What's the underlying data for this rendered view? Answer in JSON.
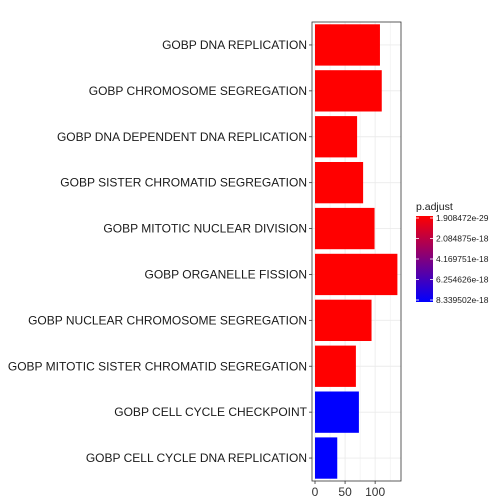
{
  "chart_data": {
    "type": "bar",
    "orientation": "horizontal",
    "categories": [
      "GOBP DNA REPLICATION",
      "GOBP CHROMOSOME SEGREGATION",
      "GOBP DNA DEPENDENT DNA REPLICATION",
      "GOBP SISTER CHROMATID SEGREGATION",
      "GOBP MITOTIC NUCLEAR DIVISION",
      "GOBP ORGANELLE FISSION",
      "GOBP NUCLEAR CHROMOSOME SEGREGATION",
      "GOBP MITOTIC SISTER CHROMATID SEGREGATION",
      "GOBP CELL CYCLE CHECKPOINT",
      "GOBP CELL CYCLE DNA REPLICATION"
    ],
    "values": [
      108,
      111,
      70,
      80,
      99,
      137,
      94,
      68,
      73,
      37
    ],
    "bar_colors": [
      "#ff0000",
      "#ff0000",
      "#ff0000",
      "#ff0000",
      "#ff0000",
      "#ff0000",
      "#ff0000",
      "#ff0000",
      "#0000ff",
      "#0000ff"
    ],
    "xlim": [
      -5,
      143
    ],
    "x_ticks": [
      0,
      50,
      100
    ],
    "x_tick_labels": [
      "0",
      "50",
      "100"
    ],
    "grid": true,
    "legend": {
      "title": "p.adjust",
      "placement": "right",
      "labels": [
        "1.908472e-29",
        "2.084875e-18",
        "4.169751e-18",
        "6.254626e-18",
        "8.339502e-18"
      ],
      "low_color": "#ff0000",
      "high_color": "#0000ff"
    }
  }
}
